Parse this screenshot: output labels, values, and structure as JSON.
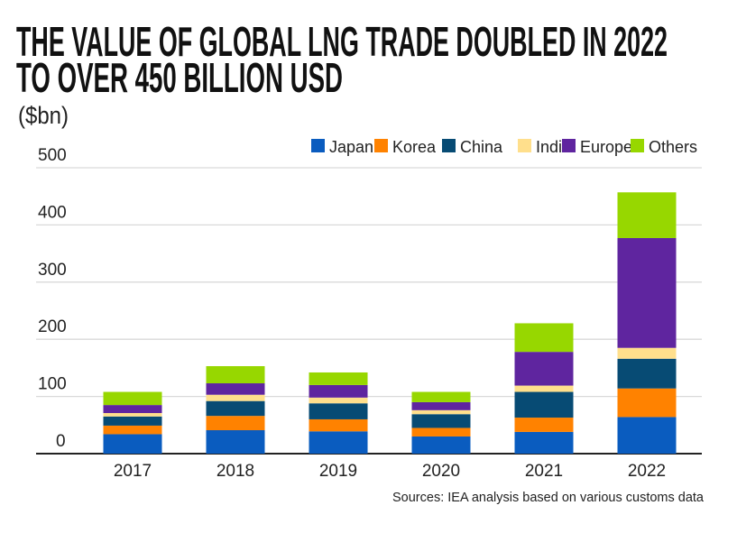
{
  "chart_data": {
    "type": "bar",
    "stacked": true,
    "title": "THE VALUE OF GLOBAL LNG TRADE DOUBLED IN 2022",
    "title_line2": "TO OVER 450 BILLION USD",
    "ylabel": "($bn)",
    "xlabel": "",
    "source": "Sources: IEA analysis based on various customs data",
    "ylim": [
      0,
      500
    ],
    "yticks": [
      0,
      100,
      200,
      300,
      400,
      500
    ],
    "grid": true,
    "legend_position": "top-right",
    "categories": [
      "2017",
      "2018",
      "2019",
      "2020",
      "2021",
      "2022"
    ],
    "series": [
      {
        "name": "Japan",
        "color": "#0a5cbf",
        "values": [
          34,
          41,
          39,
          30,
          38,
          64
        ]
      },
      {
        "name": "Korea",
        "color": "#ff8200",
        "values": [
          15,
          25,
          21,
          15,
          25,
          50
        ]
      },
      {
        "name": "China",
        "color": "#074b74",
        "values": [
          16,
          26,
          28,
          24,
          45,
          52
        ]
      },
      {
        "name": "India",
        "color": "#ffdf8c",
        "values": [
          6,
          11,
          10,
          7,
          11,
          19
        ]
      },
      {
        "name": "Europe",
        "color": "#5f259f",
        "values": [
          14,
          20,
          22,
          14,
          59,
          192
        ]
      },
      {
        "name": "Others",
        "color": "#97d700",
        "values": [
          23,
          30,
          22,
          18,
          50,
          80
        ]
      }
    ]
  }
}
